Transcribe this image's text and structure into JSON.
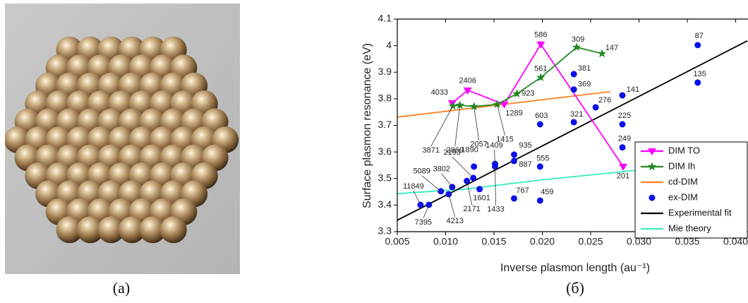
{
  "captions": [
    "(a)",
    "(б)"
  ],
  "chart_data": {
    "type": "line",
    "x_label": "Inverse plasmon length (au⁻¹)",
    "y_label": "Surface plasmon resonance (eV)",
    "xlim": [
      0.005,
      0.0412
    ],
    "ylim": [
      3.3,
      4.1
    ],
    "xticks": [
      {
        "value": 0.005,
        "label": "0.005"
      },
      {
        "value": 0.01,
        "label": "0.010"
      },
      {
        "value": 0.015,
        "label": "0.015"
      },
      {
        "value": 0.02,
        "label": "0.020"
      },
      {
        "value": 0.025,
        "label": "0.025"
      },
      {
        "value": 0.03,
        "label": "0.030"
      },
      {
        "value": 0.035,
        "label": "0.035"
      },
      {
        "value": 0.04,
        "label": "0.040"
      }
    ],
    "yticks": [
      3.3,
      3.4,
      3.5,
      3.6,
      3.7,
      3.8,
      3.9,
      4.0,
      4.1
    ],
    "legend": "bottom-right",
    "series": [
      {
        "name": "DIM TO",
        "color": "#ff00ff",
        "mode": "lines+markers",
        "marker": "triangle-down",
        "x": [
          0.01068,
          0.01228,
          0.01606,
          0.01984,
          0.02836
        ],
        "values": [
          3.784,
          3.832,
          3.779,
          4.005,
          3.545
        ],
        "labels": [
          "4033",
          "2406",
          "1289",
          "586",
          "201"
        ]
      },
      {
        "name": "DIM Ih",
        "color": "#238a23",
        "mode": "lines+markers",
        "marker": "star",
        "x": [
          0.01075,
          0.01148,
          0.01293,
          0.01533,
          0.01737,
          0.01984,
          0.02355,
          0.02617
        ],
        "values": [
          3.773,
          3.776,
          3.771,
          3.779,
          3.819,
          3.88,
          3.994,
          3.97
        ],
        "labels": [
          "3871",
          "2869",
          "2057",
          "1415",
          "923",
          "561",
          "309",
          "147"
        ]
      },
      {
        "name": "cd-DIM",
        "color": "#ff8020",
        "mode": "lines",
        "x": [
          0.005,
          0.027
        ],
        "values": [
          3.731,
          3.827
        ]
      },
      {
        "name": "ex-DIM",
        "color": "#0a10e8",
        "mode": "markers",
        "marker": "circle",
        "x": [
          0.0074,
          0.00827,
          0.00951,
          0.01031,
          0.01068,
          0.0122,
          0.01286,
          0.01293,
          0.01351,
          0.01511,
          0.01511,
          0.01708,
          0.01708,
          0.01708,
          0.01977,
          0.01977,
          0.01977,
          0.02326,
          0.02326,
          0.02326,
          0.02552,
          0.02828,
          0.02828,
          0.02828,
          0.03607,
          0.03607
        ],
        "values": [
          3.401,
          3.401,
          3.452,
          3.441,
          3.468,
          3.491,
          3.502,
          3.545,
          3.46,
          3.555,
          3.545,
          3.59,
          3.566,
          3.425,
          3.417,
          3.545,
          3.704,
          3.712,
          3.835,
          3.893,
          3.768,
          3.813,
          3.704,
          3.617,
          4.002,
          3.861
        ],
        "labels": [
          "11849",
          "7395",
          "5089",
          "4213",
          "3802",
          "2171",
          "2193",
          "1890",
          "1601",
          "1409",
          "1433",
          "935",
          "887",
          "767",
          "459",
          "555",
          "603",
          "321",
          "369",
          "381",
          "276",
          "141",
          "225",
          "249",
          "87",
          "135"
        ]
      },
      {
        "name": "Experimental fit",
        "color": "#000000",
        "mode": "lines",
        "x": [
          0.005,
          0.0412
        ],
        "values": [
          3.343,
          4.018
        ]
      },
      {
        "name": "Mie theory",
        "color": "#3ceec0",
        "mode": "lines",
        "x": [
          0.005,
          0.012,
          0.02,
          0.03,
          0.0412
        ],
        "values": [
          3.443,
          3.46,
          3.495,
          3.532,
          3.555
        ]
      }
    ]
  }
}
